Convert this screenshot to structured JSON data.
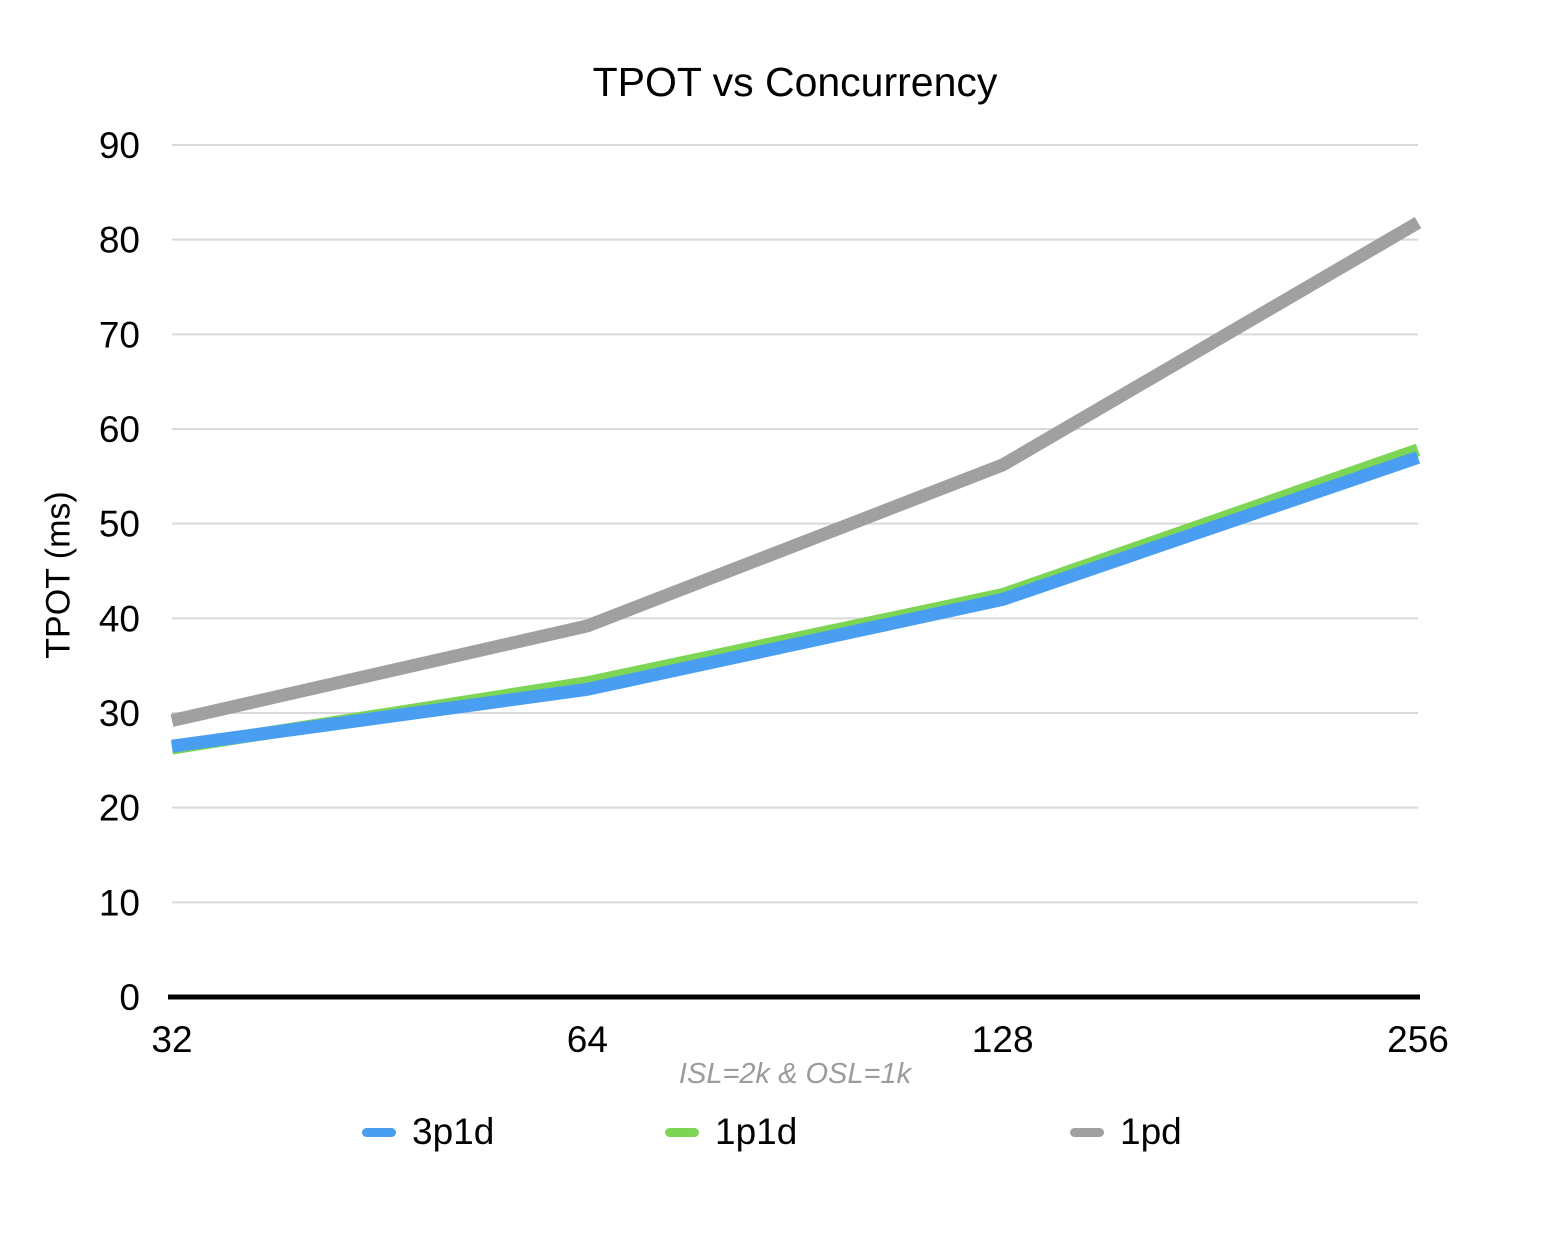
{
  "chart_data": {
    "type": "line",
    "title": "TPOT vs Concurrency",
    "xlabel": "ISL=2k & OSL=1k",
    "ylabel": "TPOT (ms)",
    "categories": [
      "32",
      "64",
      "128",
      "256"
    ],
    "series": [
      {
        "name": "3p1d",
        "color": "#4A9EF1",
        "values": [
          26.5,
          32.5,
          42.0,
          57.0
        ]
      },
      {
        "name": "1p1d",
        "color": "#7DD556",
        "values": [
          26.3,
          33.2,
          42.5,
          57.8
        ]
      },
      {
        "name": "1pd",
        "color": "#A0A0A0",
        "values": [
          29.2,
          39.2,
          56.2,
          81.8
        ]
      }
    ],
    "ylim": [
      0,
      90
    ],
    "yticks": [
      0,
      10,
      20,
      30,
      40,
      50,
      60,
      70,
      80,
      90
    ],
    "grid": true,
    "legend_position": "bottom",
    "colors": {
      "gridline": "#D9D9D9",
      "axis": "#000000",
      "subtitle": "#9B9B9B"
    }
  }
}
